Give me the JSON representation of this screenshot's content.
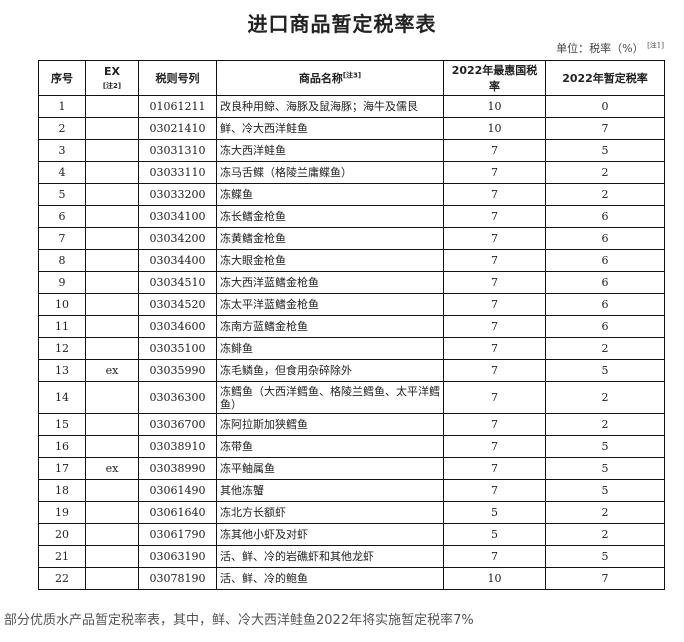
{
  "title": "进口商品暂定税率表",
  "unit": "单位：税率（%）",
  "unit_note": "[注1]",
  "headers": {
    "seq": "序号",
    "ex": "EX",
    "ex_note": "[注2]",
    "code": "税则号列",
    "name": "商品名称",
    "name_note": "[注3]",
    "mfn": "2022年最惠国税率",
    "temp": "2022年暂定税率"
  },
  "rows": [
    [
      "1",
      "",
      "01061211",
      "改良种用鲸、海豚及鼠海豚；海牛及儒艮",
      "10",
      "0"
    ],
    [
      "2",
      "",
      "03021410",
      "鲜、冷大西洋鲑鱼",
      "10",
      "7"
    ],
    [
      "3",
      "",
      "03031310",
      "冻大西洋鲑鱼",
      "7",
      "5"
    ],
    [
      "4",
      "",
      "03033110",
      "冻马舌鲽（格陵兰庸鲽鱼）",
      "7",
      "2"
    ],
    [
      "5",
      "",
      "03033200",
      "冻鲽鱼",
      "7",
      "2"
    ],
    [
      "6",
      "",
      "03034100",
      "冻长鳍金枪鱼",
      "7",
      "6"
    ],
    [
      "7",
      "",
      "03034200",
      "冻黄鳍金枪鱼",
      "7",
      "6"
    ],
    [
      "8",
      "",
      "03034400",
      "冻大眼金枪鱼",
      "7",
      "6"
    ],
    [
      "9",
      "",
      "03034510",
      "冻大西洋蓝鳍金枪鱼",
      "7",
      "6"
    ],
    [
      "10",
      "",
      "03034520",
      "冻太平洋蓝鳍金枪鱼",
      "7",
      "6"
    ],
    [
      "11",
      "",
      "03034600",
      "冻南方蓝鳍金枪鱼",
      "7",
      "6"
    ],
    [
      "12",
      "",
      "03035100",
      "冻鲱鱼",
      "7",
      "2"
    ],
    [
      "13",
      "ex",
      "03035990",
      "冻毛鳞鱼，但食用杂碎除外",
      "7",
      "5"
    ],
    [
      "14",
      "",
      "03036300",
      "冻鳕鱼（大西洋鳕鱼、格陵兰鳕鱼、太平洋鳕鱼）",
      "7",
      "2"
    ],
    [
      "15",
      "",
      "03036700",
      "冻阿拉斯加狭鳕鱼",
      "7",
      "2"
    ],
    [
      "16",
      "",
      "03038910",
      "冻带鱼",
      "7",
      "5"
    ],
    [
      "17",
      "ex",
      "03038990",
      "冻平鲉属鱼",
      "7",
      "5"
    ],
    [
      "18",
      "",
      "03061490",
      "其他冻蟹",
      "7",
      "5"
    ],
    [
      "19",
      "",
      "03061640",
      "冻北方长额虾",
      "5",
      "2"
    ],
    [
      "20",
      "",
      "03061790",
      "冻其他小虾及对虾",
      "5",
      "2"
    ],
    [
      "21",
      "",
      "03063190",
      "活、鲜、冷的岩礁虾和其他龙虾",
      "7",
      "5"
    ],
    [
      "22",
      "",
      "03078190",
      "活、鲜、冷的鲍鱼",
      "10",
      "7"
    ]
  ],
  "caption": "部分优质水产品暂定税率表，其中，鲜、冷大西洋鲑鱼2022年将实施暂定税率7%"
}
